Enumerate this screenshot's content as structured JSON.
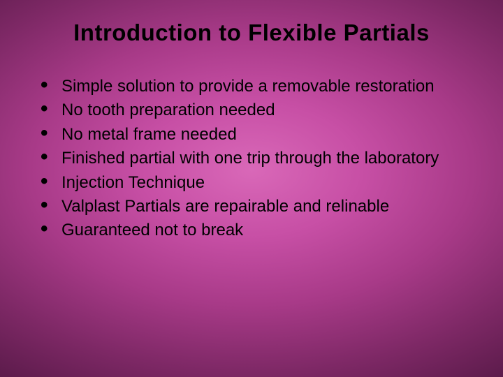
{
  "slide": {
    "title": "Introduction to Flexible Partials",
    "title_fontsize": 33,
    "body_fontsize": 24,
    "text_color": "#000000",
    "bullet_color": "#000000",
    "background_gradient": {
      "type": "radial",
      "center_color": "#d968b8",
      "mid_color": "#a83a88",
      "edge_color": "#3a0f30"
    },
    "bullets": [
      "Simple solution to provide a removable restoration",
      "No tooth preparation needed",
      "No metal frame needed",
      "Finished partial with one trip through the laboratory",
      "Injection Technique",
      "Valplast Partials are repairable and relinable",
      "Guaranteed not to break"
    ]
  }
}
